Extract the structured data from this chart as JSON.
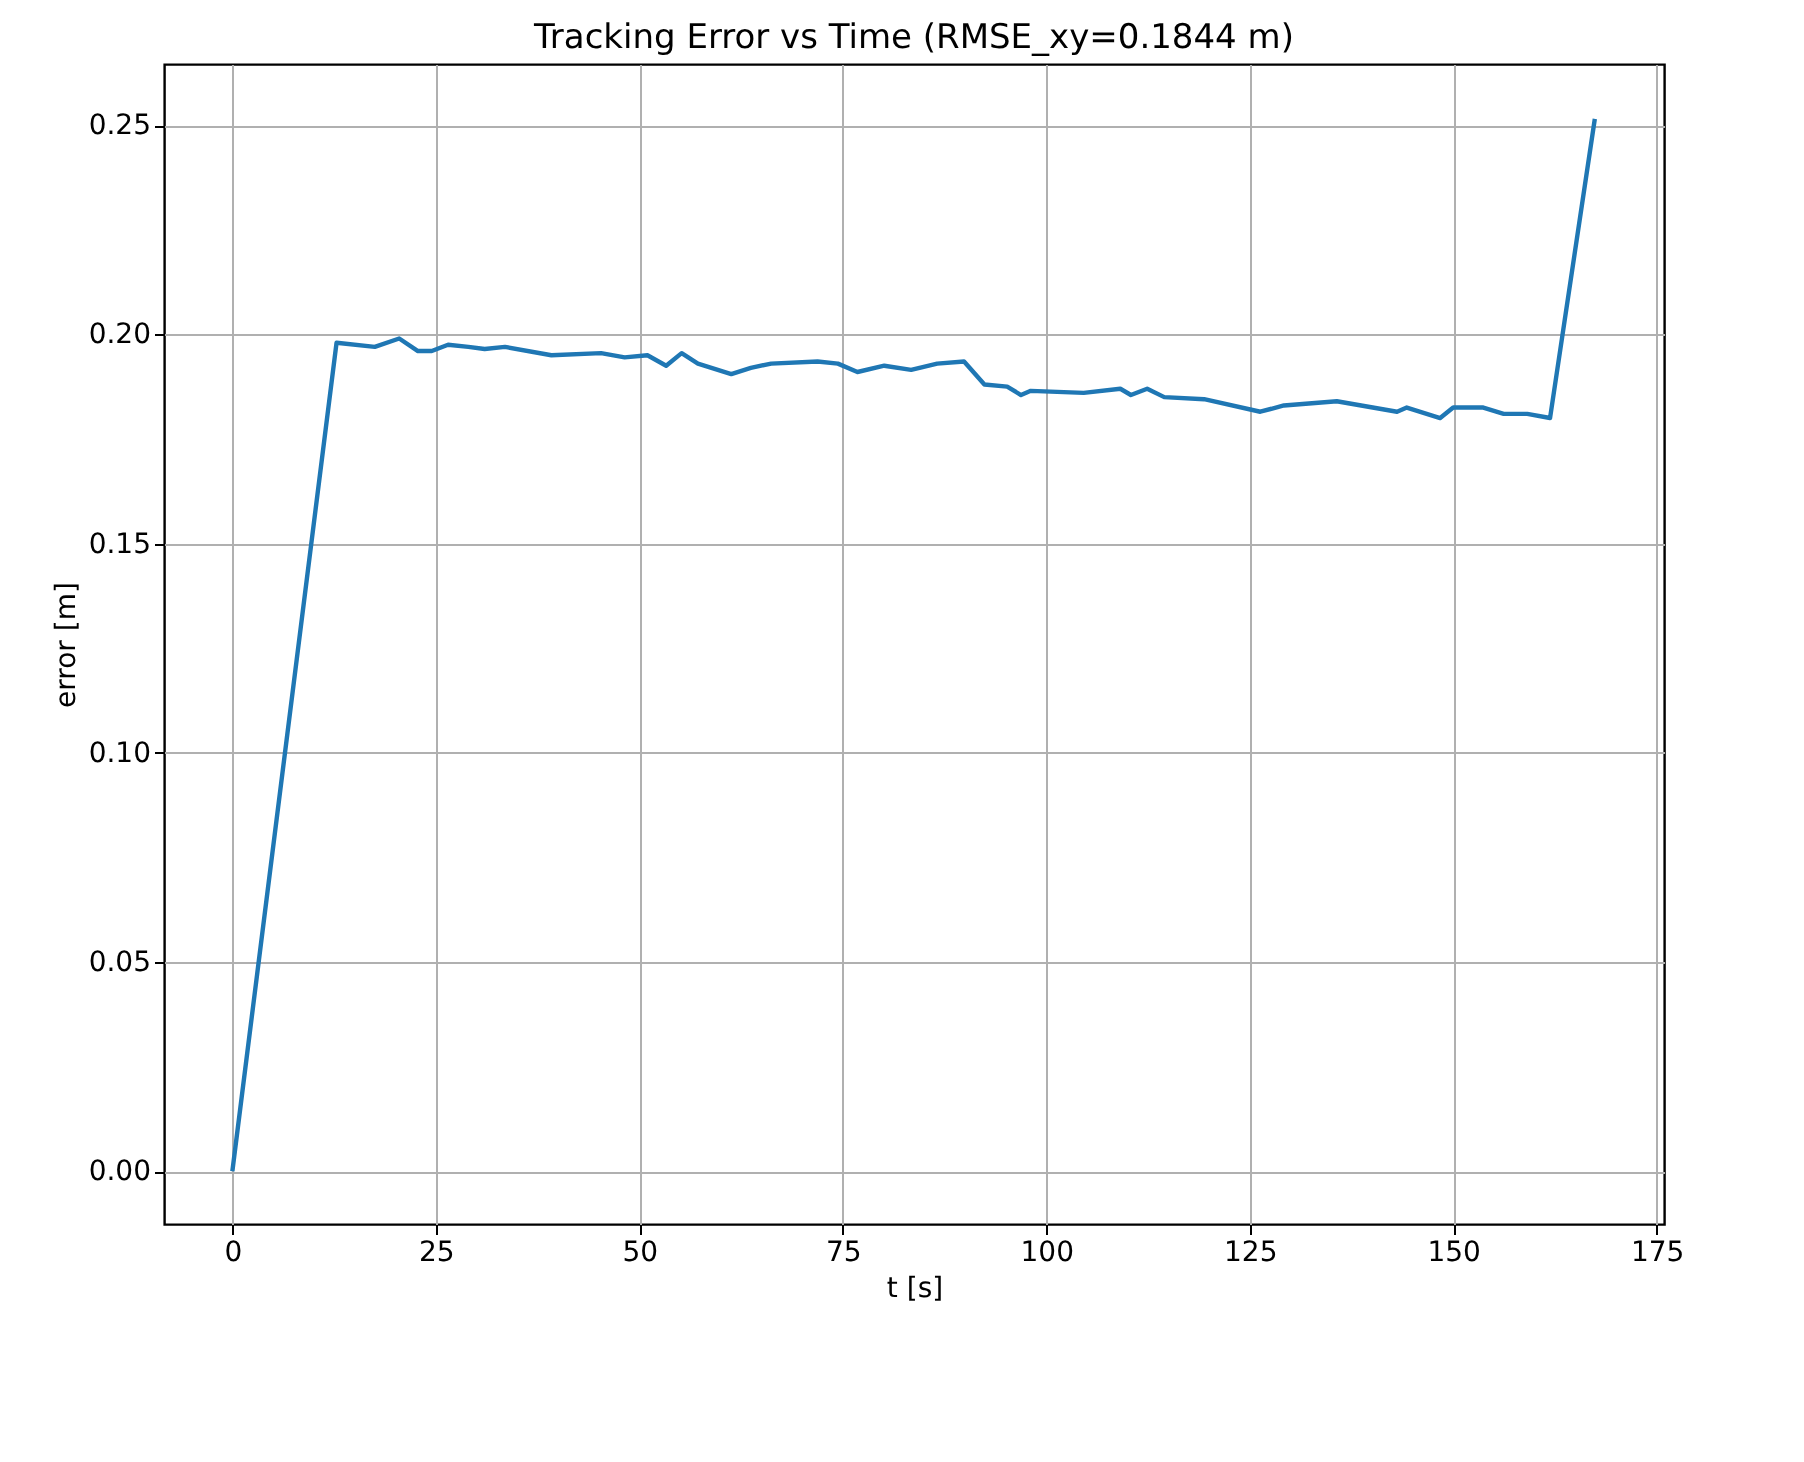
{
  "chart_data": {
    "type": "line",
    "title": "Tracking Error vs Time  (RMSE_xy=0.1844 m)",
    "xlabel": "t [s]",
    "ylabel": "error [m]",
    "series": [
      {
        "color": "#1f77b4",
        "x": [
          0,
          12.8,
          17.5,
          20.5,
          22.8,
          24.5,
          26.5,
          29,
          31,
          33.5,
          39.2,
          45.3,
          48.2,
          51,
          53.3,
          55.2,
          57.2,
          61.3,
          63.7,
          66.2,
          71.9,
          74.4,
          76.8,
          80.1,
          83.4,
          86.6,
          89.9,
          92.4,
          95.2,
          96.9,
          98.1,
          104.6,
          109.1,
          110.4,
          112.4,
          114.5,
          119.4,
          126.3,
          129.2,
          135.7,
          143.1,
          144.3,
          148.4,
          150,
          153.7,
          156.2,
          159.1,
          161.9,
          167.4
        ],
        "values": [
          0,
          0.198,
          0.197,
          0.199,
          0.196,
          0.196,
          0.1975,
          0.197,
          0.1965,
          0.197,
          0.195,
          0.1955,
          0.1945,
          0.195,
          0.1925,
          0.1955,
          0.193,
          0.1905,
          0.192,
          0.193,
          0.1935,
          0.193,
          0.191,
          0.1925,
          0.1915,
          0.193,
          0.1935,
          0.188,
          0.1875,
          0.1855,
          0.1865,
          0.186,
          0.187,
          0.1855,
          0.187,
          0.185,
          0.1845,
          0.1815,
          0.183,
          0.184,
          0.1815,
          0.1825,
          0.18,
          0.1825,
          0.1825,
          0.181,
          0.181,
          0.18,
          0.2515
        ]
      }
    ],
    "xlim": [
      -8.4,
      175.9
    ],
    "ylim": [
      -0.0126,
      0.2646
    ],
    "xticks": [
      0,
      25,
      50,
      75,
      100,
      125,
      150,
      175
    ],
    "yticks": [
      {
        "value": 0,
        "label": "0.00"
      },
      {
        "value": 0.05,
        "label": "0.05"
      },
      {
        "value": 0.1,
        "label": "0.10"
      },
      {
        "value": 0.15,
        "label": "0.15"
      },
      {
        "value": 0.2,
        "label": "0.20"
      },
      {
        "value": 0.25,
        "label": "0.25"
      }
    ],
    "grid": true,
    "marker": "none",
    "line_style": "solid"
  }
}
